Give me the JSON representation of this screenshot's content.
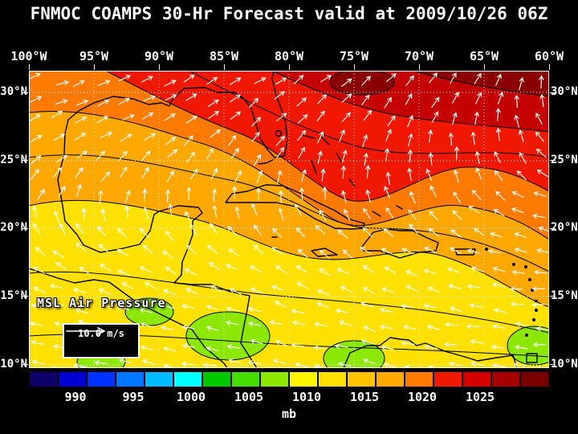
{
  "title": "FNMOC COAMPS 30-Hr Forecast valid at 2009/10/26 06Z",
  "map": {
    "top_axis_labels": [
      "100°W",
      "95°W",
      "90°W",
      "85°W",
      "80°W",
      "75°W",
      "70°W",
      "65°W",
      "60°W"
    ],
    "left_axis_labels": [
      "30°N",
      "25°N",
      "20°N",
      "15°N",
      "10°N"
    ],
    "right_axis_labels": [
      "30°N",
      "25°N",
      "20°N",
      "15°N",
      "10°N"
    ],
    "field_label": "MSL Air Pressure",
    "wind_scale_label": "10.0 m/s",
    "arrow_color": "#ffffff"
  },
  "field_colors": {
    "green": "#8ce800",
    "yellow": "#ffe100",
    "orange": "#ffa800",
    "dark_orange": "#ff7a00",
    "red": "#f01800",
    "dark_red": "#c40000",
    "maroon": "#8a0000"
  },
  "colorbar": {
    "unit_label": "mb",
    "tick_labels": [
      "990",
      "995",
      "1000",
      "1005",
      "1010",
      "1015",
      "1020",
      "1025"
    ],
    "segments": [
      "#0d0068",
      "#0000d0",
      "#0033ff",
      "#0077ff",
      "#00bbff",
      "#00ffff",
      "#00c800",
      "#44dd00",
      "#8ce800",
      "#fff600",
      "#ffe100",
      "#ffc300",
      "#ffa800",
      "#ff7a00",
      "#f01800",
      "#d40000",
      "#a80000",
      "#7a0000"
    ]
  }
}
